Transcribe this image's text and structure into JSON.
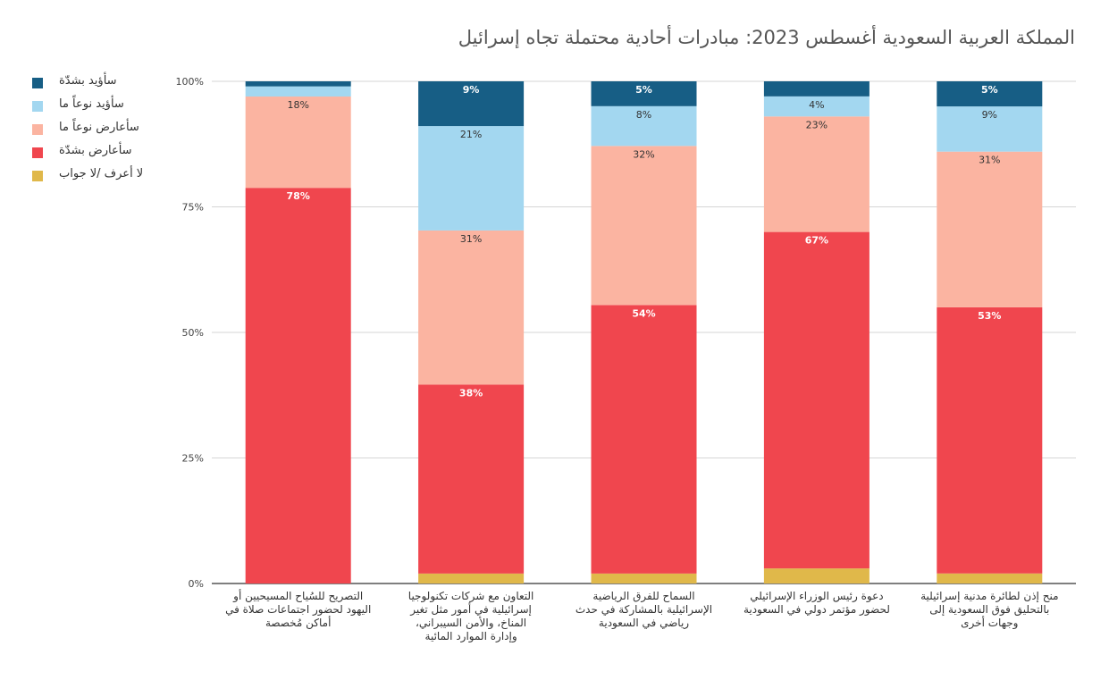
{
  "chart_data": {
    "type": "bar",
    "stacked": true,
    "percent_stacked": true,
    "title": "المملكة العربية السعودية أغسطس 2023: مبادرات أحادية محتملة تجاه إسرائيل",
    "xlabel": "",
    "ylabel": "",
    "ylim": [
      0,
      100
    ],
    "y_ticks": [
      "0%",
      "25%",
      "50%",
      "75%",
      "100%"
    ],
    "y_tick_values": [
      0,
      25,
      50,
      75,
      100
    ],
    "grid": true,
    "legend_position": "top-left",
    "categories": [
      "التصريح للسُياح المسيحيين أو اليهود لحضور اجتماعات صلاة في أماكن مُخصصة",
      "التعاون مع شركات تكنولوجيا إسرائيلية في أمور مثل تغير المناخ، والأمن السيبراني، وإدارة الموارد المائية",
      "السماح للفرق الرياضية الإسرائيلية بالمشاركة في حدث رياضي في السعودية",
      "دعوة رئيس الوزراء الإسرائيلي لحضور مؤتمر دولي في السعودية",
      "منح إذن لطائرة مدنية إسرائيلية بالتحليق فوق السعودية إلى وجهات أخرى"
    ],
    "series": [
      {
        "name": "لا أعرف /لا جواب",
        "color": "#e0b84a",
        "values": [
          0,
          2,
          2,
          3,
          2
        ],
        "labels": [
          "",
          "",
          "",
          "",
          ""
        ]
      },
      {
        "name": "سأعارض بشدّة",
        "color": "#f0464e",
        "values": [
          78,
          38,
          54,
          67,
          53
        ],
        "labels": [
          "78%",
          "38%",
          "54%",
          "67%",
          "53%"
        ]
      },
      {
        "name": "سأعارض نوعاً ما",
        "color": "#fbb4a1",
        "values": [
          18,
          31,
          32,
          23,
          31
        ],
        "labels": [
          "18%",
          "31%",
          "32%",
          "23%",
          "31%"
        ]
      },
      {
        "name": "سأؤيد نوعاً ما",
        "color": "#a3d7f0",
        "values": [
          2,
          21,
          8,
          4,
          9
        ],
        "labels": [
          "",
          "21%",
          "8%",
          "4%",
          "9%"
        ]
      },
      {
        "name": "سأؤيد بشدّة",
        "color": "#175e85",
        "values": [
          1,
          9,
          5,
          3,
          5
        ],
        "labels": [
          "",
          "9%",
          "5%",
          "",
          "5%"
        ]
      }
    ]
  },
  "legend_order": [
    4,
    3,
    2,
    1,
    0
  ]
}
